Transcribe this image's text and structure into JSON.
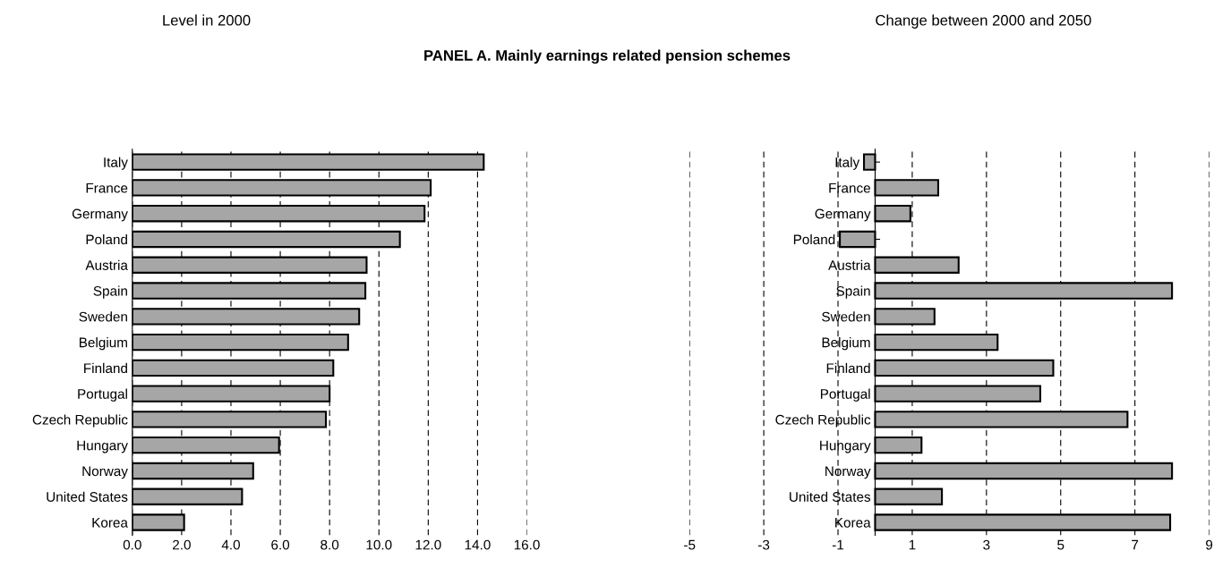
{
  "chart_data": [
    {
      "type": "bar",
      "orientation": "horizontal",
      "title": "Level in 2000",
      "subtitle": "PANEL A. Mainly earnings related pension schemes",
      "categories": [
        "Italy",
        "France",
        "Germany",
        "Poland",
        "Austria",
        "Spain",
        "Sweden",
        "Belgium",
        "Finland",
        "Portugal",
        "Czech Republic",
        "Hungary",
        "Norway",
        "United States",
        "Korea"
      ],
      "series": [
        {
          "color": "#a6a6a6",
          "values": [
            14.25,
            12.1,
            11.85,
            10.85,
            9.5,
            9.45,
            9.2,
            8.75,
            8.15,
            8.0,
            7.85,
            5.95,
            4.9,
            4.45,
            2.1
          ]
        }
      ],
      "xlim": [
        0,
        16
      ],
      "xticks": [
        {
          "value": 0,
          "label": "0.0"
        },
        {
          "value": 2,
          "label": "2.0"
        },
        {
          "value": 4,
          "label": "4.0"
        },
        {
          "value": 6,
          "label": "6.0"
        },
        {
          "value": 8,
          "label": "8.0"
        },
        {
          "value": 10,
          "label": "10.0"
        },
        {
          "value": 12,
          "label": "12.0"
        },
        {
          "value": 14,
          "label": "14.0"
        },
        {
          "value": 16,
          "label": "16.0"
        }
      ],
      "grid": "x",
      "legend": false
    },
    {
      "type": "bar",
      "orientation": "horizontal",
      "title": "Change between 2000 and 2050",
      "categories": [
        "Italy",
        "France",
        "Germany",
        "Poland",
        "Austria",
        "Spain",
        "Sweden",
        "Belgium",
        "Finland",
        "Portugal",
        "Czech Republic",
        "Hungary",
        "Norway",
        "United States",
        "Korea"
      ],
      "series": [
        {
          "color": "#a6a6a6",
          "values": [
            -0.3,
            1.7,
            0.95,
            -0.95,
            2.25,
            8.0,
            1.6,
            3.3,
            4.8,
            4.45,
            6.8,
            1.25,
            8.0,
            1.8,
            7.95
          ]
        }
      ],
      "xlim": [
        -5,
        9
      ],
      "xticks": [
        -5,
        -3,
        -1,
        1,
        3,
        5,
        7,
        9
      ],
      "grid": "x",
      "legend": false
    }
  ]
}
